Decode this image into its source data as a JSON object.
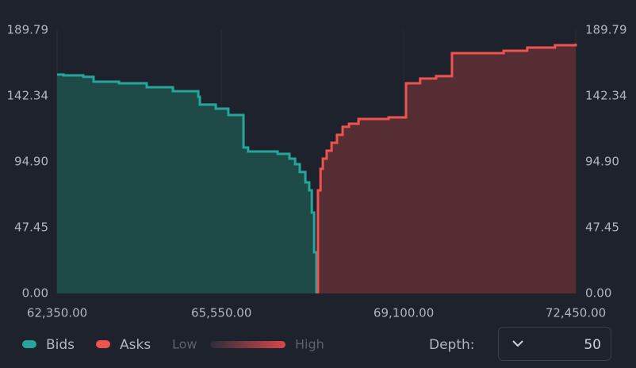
{
  "chart_data": {
    "type": "depth",
    "xlim": [
      62350,
      72450
    ],
    "xticks": [
      {
        "value": 62350,
        "label": "62,350.00"
      },
      {
        "value": 65550,
        "label": "65,550.00"
      },
      {
        "value": 69100,
        "label": "69,100.00"
      },
      {
        "value": 72450,
        "label": "72,450.00"
      }
    ],
    "ylim": [
      0,
      189.79
    ],
    "yticks": [
      {
        "value": 0,
        "label": "0.00"
      },
      {
        "value": 47.45,
        "label": "47.45"
      },
      {
        "value": 94.9,
        "label": "94.90"
      },
      {
        "value": 142.34,
        "label": "142.34"
      },
      {
        "value": 189.79,
        "label": "189.79"
      }
    ],
    "xgrid": true,
    "series": [
      {
        "name": "Bids",
        "color": "#26a69a",
        "fill": "#1f4d49",
        "x": [
          62350,
          62474,
          62860,
          63060,
          63555,
          64095,
          64605,
          65100,
          65130,
          65440,
          65685,
          65980,
          66070,
          66645,
          66875,
          66985,
          67075,
          67185,
          67260,
          67310,
          67355,
          67400
        ],
        "values": [
          157.8,
          157.2,
          156.1,
          152.6,
          151.5,
          148.6,
          145.8,
          141.8,
          136.1,
          133.2,
          128.6,
          105.2,
          102.3,
          100.6,
          97.2,
          93.2,
          87.5,
          80.0,
          74.3,
          58.3,
          29.7,
          22.9
        ]
      },
      {
        "name": "Asks",
        "color": "#ef5350",
        "fill": "#5a2e33",
        "x": [
          67430,
          67480,
          67525,
          67600,
          67695,
          67800,
          67910,
          68035,
          68220,
          68805,
          69145,
          69420,
          69730,
          70040,
          71045,
          71505,
          72045,
          72450
        ],
        "values": [
          74.3,
          89.8,
          97.2,
          102.9,
          108.6,
          114.3,
          120.1,
          122.3,
          125.8,
          126.9,
          151.5,
          154.9,
          156.6,
          173.2,
          174.9,
          177.2,
          178.9,
          180.1
        ]
      }
    ],
    "intensity_legend": {
      "low": "Low",
      "high": "High"
    }
  },
  "controls": {
    "depth_label": "Depth:",
    "depth_value": 50
  }
}
